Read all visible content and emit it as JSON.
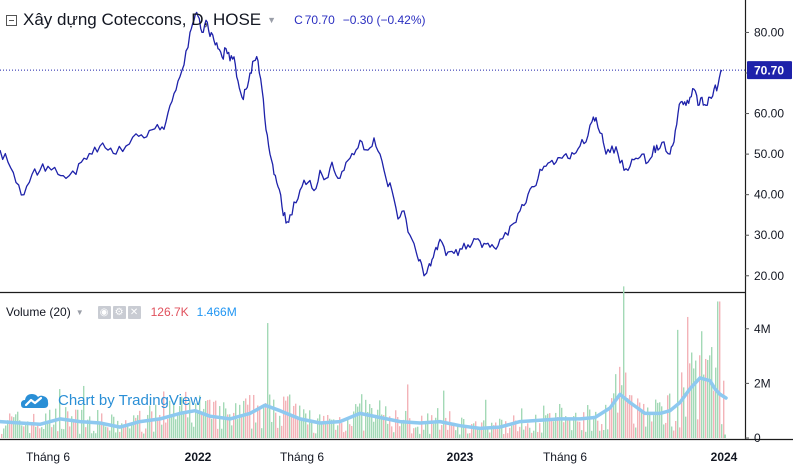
{
  "header": {
    "title": "Xây dựng Coteccons, D, HOSE",
    "quote_label": "C",
    "quote_value": "70.70",
    "quote_change": "−0.30 (−0.42%)"
  },
  "volume_header": {
    "title": "Volume (20)",
    "value_a": "126.7K",
    "value_b": "1.466M"
  },
  "watermark": {
    "text": "Chart by TradingView"
  },
  "colors": {
    "price_line": "#1e22aa",
    "volume_ma": "#8ec9f0",
    "vol_up": "#a3d9b6",
    "vol_down": "#f3b3b8",
    "last_price": "#1e22aa",
    "watermark": "#2a8fd6"
  },
  "chart_data": {
    "type": "line",
    "x_axis_labels": [
      "Tháng 6",
      "2022",
      "Tháng 6",
      "2023",
      "Tháng 6",
      "2024"
    ],
    "price": {
      "y_ticks": [
        "80.00",
        "70.00",
        "60.00",
        "50.00",
        "40.00",
        "30.00",
        "20.00"
      ],
      "ylim": [
        16,
        88
      ],
      "last_value_label": "70.70",
      "points": [
        [
          0,
          51
        ],
        [
          8,
          48
        ],
        [
          16,
          43
        ],
        [
          24,
          40
        ],
        [
          32,
          45
        ],
        [
          40,
          46
        ],
        [
          48,
          47
        ],
        [
          58,
          45
        ],
        [
          66,
          44
        ],
        [
          76,
          45
        ],
        [
          84,
          49
        ],
        [
          92,
          50
        ],
        [
          100,
          52
        ],
        [
          108,
          51
        ],
        [
          116,
          50
        ],
        [
          126,
          52
        ],
        [
          136,
          55
        ],
        [
          144,
          54
        ],
        [
          152,
          56
        ],
        [
          160,
          56
        ],
        [
          166,
          58
        ],
        [
          172,
          63
        ],
        [
          178,
          68
        ],
        [
          184,
          72
        ],
        [
          190,
          80
        ],
        [
          194,
          83
        ],
        [
          198,
          84
        ],
        [
          202,
          80
        ],
        [
          206,
          83
        ],
        [
          210,
          79
        ],
        [
          214,
          78
        ],
        [
          218,
          76
        ],
        [
          222,
          74
        ],
        [
          226,
          76
        ],
        [
          230,
          73
        ],
        [
          234,
          74
        ],
        [
          238,
          68
        ],
        [
          242,
          64
        ],
        [
          246,
          66
        ],
        [
          250,
          70
        ],
        [
          254,
          73
        ],
        [
          258,
          73
        ],
        [
          262,
          66
        ],
        [
          266,
          56
        ],
        [
          270,
          50
        ],
        [
          274,
          45
        ],
        [
          278,
          42
        ],
        [
          282,
          37
        ],
        [
          286,
          33
        ],
        [
          290,
          35
        ],
        [
          296,
          38
        ],
        [
          302,
          42
        ],
        [
          308,
          43
        ],
        [
          314,
          41
        ],
        [
          320,
          46
        ],
        [
          326,
          44
        ],
        [
          332,
          48
        ],
        [
          338,
          44
        ],
        [
          344,
          46
        ],
        [
          350,
          49
        ],
        [
          356,
          51
        ],
        [
          362,
          53
        ],
        [
          368,
          51
        ],
        [
          374,
          54
        ],
        [
          380,
          50
        ],
        [
          386,
          44
        ],
        [
          392,
          41
        ],
        [
          398,
          34
        ],
        [
          404,
          36
        ],
        [
          410,
          30
        ],
        [
          416,
          26
        ],
        [
          420,
          24
        ],
        [
          424,
          20
        ],
        [
          428,
          22
        ],
        [
          432,
          24
        ],
        [
          436,
          27
        ],
        [
          440,
          29
        ],
        [
          446,
          25
        ],
        [
          452,
          26
        ],
        [
          458,
          25
        ],
        [
          464,
          28
        ],
        [
          470,
          27
        ],
        [
          476,
          29
        ],
        [
          482,
          27
        ],
        [
          488,
          28
        ],
        [
          494,
          27
        ],
        [
          500,
          29
        ],
        [
          508,
          30
        ],
        [
          514,
          33
        ],
        [
          520,
          36
        ],
        [
          526,
          38
        ],
        [
          532,
          42
        ],
        [
          538,
          44
        ],
        [
          544,
          47
        ],
        [
          550,
          48
        ],
        [
          556,
          48
        ],
        [
          562,
          49
        ],
        [
          568,
          49
        ],
        [
          574,
          50
        ],
        [
          580,
          52
        ],
        [
          586,
          53
        ],
        [
          592,
          58
        ],
        [
          596,
          59
        ],
        [
          602,
          55
        ],
        [
          606,
          50
        ],
        [
          612,
          52
        ],
        [
          618,
          50
        ],
        [
          624,
          46
        ],
        [
          630,
          47
        ],
        [
          636,
          49
        ],
        [
          642,
          50
        ],
        [
          648,
          48
        ],
        [
          654,
          52
        ],
        [
          658,
          51
        ],
        [
          664,
          53
        ],
        [
          670,
          50
        ],
        [
          674,
          53
        ],
        [
          678,
          60
        ],
        [
          682,
          63
        ],
        [
          686,
          62
        ],
        [
          690,
          64
        ],
        [
          694,
          66
        ],
        [
          698,
          62
        ],
        [
          702,
          64
        ],
        [
          706,
          62
        ],
        [
          710,
          64
        ],
        [
          714,
          66
        ],
        [
          718,
          67
        ],
        [
          722,
          70.7
        ]
      ]
    },
    "volume": {
      "y_ticks": [
        "4M",
        "2M",
        "0"
      ],
      "ylim": [
        0,
        5.2
      ],
      "ma_points": [
        [
          0,
          0.6
        ],
        [
          20,
          0.55
        ],
        [
          40,
          0.5
        ],
        [
          60,
          0.7
        ],
        [
          80,
          0.6
        ],
        [
          100,
          0.55
        ],
        [
          120,
          0.4
        ],
        [
          140,
          0.6
        ],
        [
          160,
          0.7
        ],
        [
          180,
          0.9
        ],
        [
          195,
          1.0
        ],
        [
          210,
          0.8
        ],
        [
          230,
          0.7
        ],
        [
          250,
          0.9
        ],
        [
          265,
          1.2
        ],
        [
          280,
          1.0
        ],
        [
          300,
          0.7
        ],
        [
          320,
          0.55
        ],
        [
          340,
          0.6
        ],
        [
          360,
          0.9
        ],
        [
          380,
          0.75
        ],
        [
          400,
          0.6
        ],
        [
          420,
          0.55
        ],
        [
          440,
          0.6
        ],
        [
          460,
          0.45
        ],
        [
          480,
          0.35
        ],
        [
          500,
          0.4
        ],
        [
          520,
          0.6
        ],
        [
          540,
          0.65
        ],
        [
          560,
          0.7
        ],
        [
          580,
          0.7
        ],
        [
          595,
          0.75
        ],
        [
          610,
          1.1
        ],
        [
          620,
          1.6
        ],
        [
          630,
          1.3
        ],
        [
          645,
          0.9
        ],
        [
          660,
          0.9
        ],
        [
          670,
          1.0
        ],
        [
          680,
          1.3
        ],
        [
          690,
          1.8
        ],
        [
          700,
          2.2
        ],
        [
          710,
          2.1
        ],
        [
          715,
          1.8
        ],
        [
          720,
          1.6
        ],
        [
          726,
          1.466
        ]
      ],
      "last_bar_value": 0.1267
    }
  }
}
